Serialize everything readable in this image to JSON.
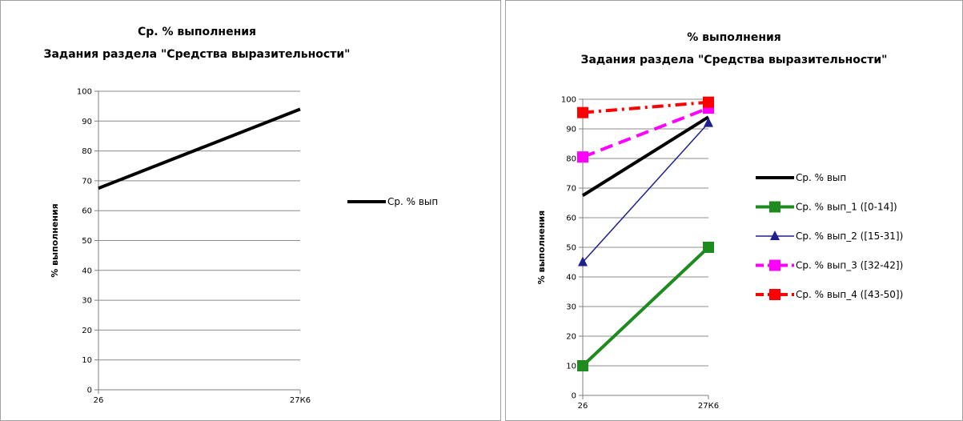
{
  "chart_data": [
    {
      "type": "line",
      "title": "Ср. % выполнения",
      "subtitle": "Задания раздела \"Средства выразительности\"",
      "xlabel": "",
      "ylabel": "% выполнения",
      "categories": [
        "26",
        "27К6"
      ],
      "ylim": [
        0,
        100
      ],
      "yticks": [
        0,
        10,
        20,
        30,
        40,
        50,
        60,
        70,
        80,
        90,
        100
      ],
      "grid": true,
      "legend_position": "right",
      "series": [
        {
          "name": "Ср. % вып",
          "values": [
            67.5,
            94
          ],
          "color": "#000000",
          "marker": "none",
          "dash": "solid",
          "width": 4
        }
      ]
    },
    {
      "type": "line",
      "title": "% выполнения",
      "subtitle": "Задания раздела \"Средства выразительности\"",
      "xlabel": "",
      "ylabel": "% выполнения",
      "categories": [
        "26",
        "27К6"
      ],
      "ylim": [
        0,
        100
      ],
      "yticks": [
        0,
        10,
        20,
        30,
        40,
        50,
        60,
        70,
        80,
        90,
        100
      ],
      "grid": true,
      "legend_position": "right",
      "series": [
        {
          "name": "Ср. % вып",
          "values": [
            67.5,
            94
          ],
          "color": "#000000",
          "marker": "none",
          "dash": "solid",
          "width": 4
        },
        {
          "name": "Ср. % вып_1 ([0-14])",
          "values": [
            10,
            50
          ],
          "color": "#1e8b1e",
          "marker": "square",
          "dash": "solid",
          "width": 4
        },
        {
          "name": "Ср. % вып_2 ([15-31])",
          "values": [
            45,
            92
          ],
          "color": "#1f1f8f",
          "marker": "triangle",
          "dash": "solid",
          "width": 1.5
        },
        {
          "name": "Ср. % вып_3 ([32-42])",
          "values": [
            80.5,
            97
          ],
          "color": "#ff00ff",
          "marker": "square",
          "dash": "dash",
          "width": 4
        },
        {
          "name": "Ср. % вып_4 ([43-50])",
          "values": [
            95.5,
            99
          ],
          "color": "#ff0000",
          "marker": "square",
          "dash": "dashdot",
          "width": 4
        }
      ]
    }
  ]
}
